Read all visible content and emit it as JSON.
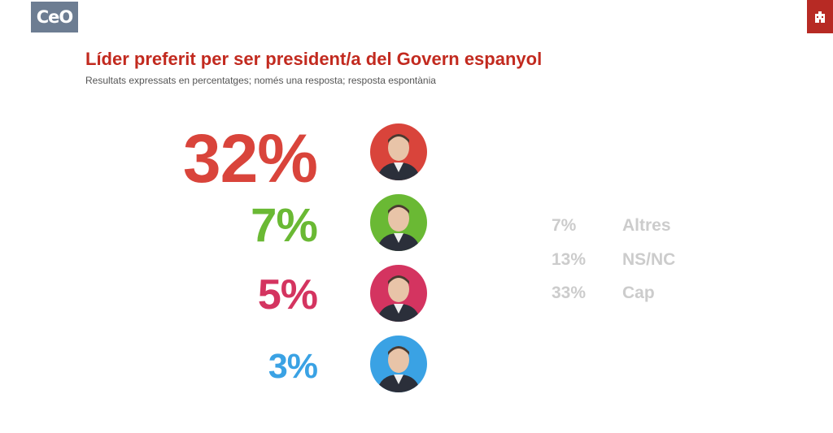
{
  "logo": {
    "text": "CeO"
  },
  "header": {
    "title": "Líder preferit per ser president/a del Govern espanyol",
    "subtitle": "Resultats expressats en percentatges; només una resposta; resposta espontània"
  },
  "colors": {
    "title": "#c22a1f",
    "side": "#cccccc"
  },
  "chart_data": {
    "type": "table",
    "title": "Líder preferit per ser president/a del Govern espanyol",
    "subtitle": "Resultats expressats en percentatges; només una resposta; resposta espontània",
    "leaders": [
      {
        "value": 32,
        "label": "32%",
        "color": "#d9443b",
        "icon": "leader-portrait-icon"
      },
      {
        "value": 7,
        "label": "7%",
        "color": "#6ab934",
        "icon": "leader-portrait-icon"
      },
      {
        "value": 5,
        "label": "5%",
        "color": "#d43460",
        "icon": "leader-portrait-icon"
      },
      {
        "value": 3,
        "label": "3%",
        "color": "#3aa2e4",
        "icon": "leader-portrait-icon"
      }
    ],
    "others": [
      {
        "value": 7,
        "label": "7%",
        "category": "Altres"
      },
      {
        "value": 13,
        "label": "13%",
        "category": "NS/NC"
      },
      {
        "value": 33,
        "label": "33%",
        "category": "Cap"
      }
    ]
  }
}
